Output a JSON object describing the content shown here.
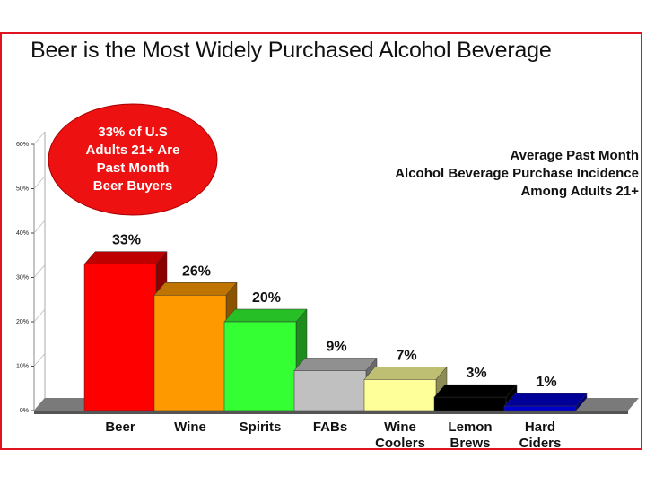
{
  "title": "Beer is the Most Widely Purchased Alcohol Beverage",
  "callout": {
    "lines": [
      "33% of U.S",
      "Adults 21+ Are",
      "Past Month",
      "Beer Buyers"
    ],
    "color": "#ee1111"
  },
  "annotation": {
    "lines": [
      "Average Past Month",
      "Alcohol Beverage Purchase Incidence",
      "Among Adults 21+"
    ]
  },
  "chart_data": {
    "type": "bar",
    "title": "Beer is the Most Widely Purchased Alcohol Beverage",
    "ylabel": "",
    "xlabel": "",
    "ylim": [
      0,
      60
    ],
    "yticks": [
      "0%",
      "10%",
      "20%",
      "30%",
      "40%",
      "50%",
      "60%"
    ],
    "categories": [
      "Beer",
      "Wine",
      "Spirits",
      "FABs",
      "Wine Coolers",
      "Lemon Brews",
      "Hard Ciders"
    ],
    "category_lines": [
      [
        "Beer"
      ],
      [
        "Wine"
      ],
      [
        "Spirits"
      ],
      [
        "FABs"
      ],
      [
        "Wine",
        "Coolers"
      ],
      [
        "Lemon",
        "Brews"
      ],
      [
        "Hard",
        "Ciders"
      ]
    ],
    "values": [
      33,
      26,
      20,
      9,
      7,
      3,
      1
    ],
    "value_labels": [
      "33%",
      "26%",
      "20%",
      "9%",
      "7%",
      "3%",
      "1%"
    ],
    "colors": [
      "#ff0000",
      "#ff9900",
      "#33ff33",
      "#c0c0c0",
      "#ffff99",
      "#000000",
      "#0000cc"
    ]
  }
}
